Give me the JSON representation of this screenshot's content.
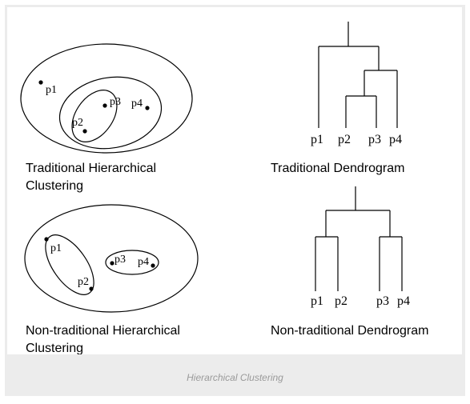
{
  "points": {
    "p1": "p1",
    "p2": "p2",
    "p3": "p3",
    "p4": "p4"
  },
  "panels": {
    "traditional_clustering": {
      "caption_line1": "Traditional Hierarchical",
      "caption_line2": "Clustering"
    },
    "traditional_dendrogram": {
      "caption": "Traditional Dendrogram"
    },
    "nontraditional_clustering": {
      "caption_line1": "Non-traditional Hierarchical",
      "caption_line2": "Clustering"
    },
    "nontraditional_dendrogram": {
      "caption": "Non-traditional Dendrogram"
    }
  },
  "figure_caption": "Hierarchical Clustering"
}
